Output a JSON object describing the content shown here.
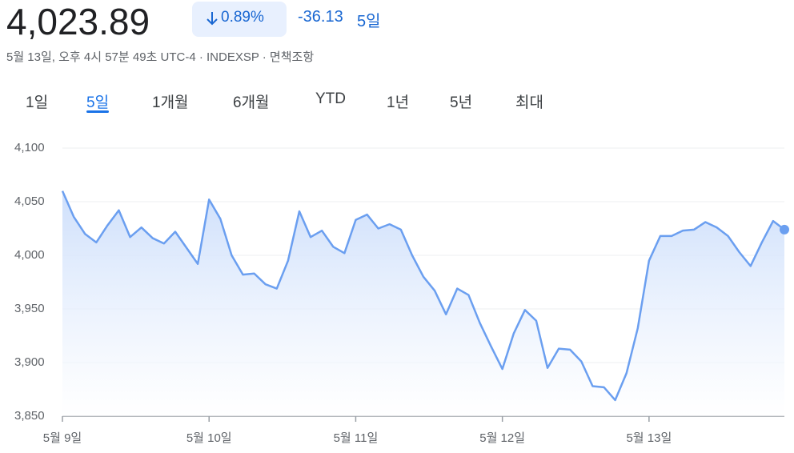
{
  "header": {
    "price": "4,023.89",
    "change_percent": "0.89%",
    "change": "-36.13",
    "period": "5일",
    "subtitle": "5월 13일, 오후 4시 57분 49초 UTC-4 · INDEXSP · 면책조항"
  },
  "tabs": [
    "1일",
    "5일",
    "1개월",
    "6개월",
    "YTD",
    "1년",
    "5년",
    "최대"
  ],
  "active_tab": 1,
  "chart_data": {
    "type": "line",
    "color": "#6b9ff0",
    "categories": [
      "5월 9일",
      null,
      null,
      null,
      null,
      null,
      null,
      null,
      null,
      null,
      null,
      null,
      null,
      "5월 10일",
      null,
      null,
      null,
      null,
      null,
      null,
      null,
      null,
      null,
      null,
      null,
      null,
      "5월 11일",
      null,
      null,
      null,
      null,
      null,
      null,
      null,
      null,
      null,
      null,
      null,
      null,
      "5월 12일",
      null,
      null,
      null,
      null,
      null,
      null,
      null,
      null,
      null,
      null,
      null,
      null,
      "5월 13일",
      null,
      null,
      null,
      null,
      null,
      null,
      null,
      null,
      null,
      null,
      null,
      null
    ],
    "values": [
      4060,
      4036,
      4020,
      4012,
      4028,
      4042,
      4017,
      4026,
      4016,
      4011,
      4022,
      4007,
      3992,
      4052,
      4034,
      4000,
      3982,
      3983,
      3973,
      3969,
      3995,
      4041,
      4017,
      4023,
      4008,
      4002,
      4033,
      4038,
      4025,
      4029,
      4024,
      4000,
      3980,
      3967,
      3945,
      3969,
      3963,
      3937,
      3915,
      3894,
      3927,
      3949,
      3939,
      3895,
      3913,
      3912,
      3901,
      3878,
      3877,
      3865,
      3890,
      3932,
      3995,
      4018,
      4018,
      4023,
      4024,
      4031,
      4026,
      4018,
      4003,
      3990,
      4012,
      4032,
      4024
    ],
    "ylim": [
      3850,
      4100
    ],
    "yticks": [
      {
        "value": 3850,
        "label": "3,850"
      },
      {
        "value": 3900,
        "label": "3,900"
      },
      {
        "value": 3950,
        "label": "3,950"
      },
      {
        "value": 4000,
        "label": "4,000"
      },
      {
        "value": 4050,
        "label": "4,050"
      },
      {
        "value": 4100,
        "label": "4,100"
      }
    ],
    "grid": true
  }
}
